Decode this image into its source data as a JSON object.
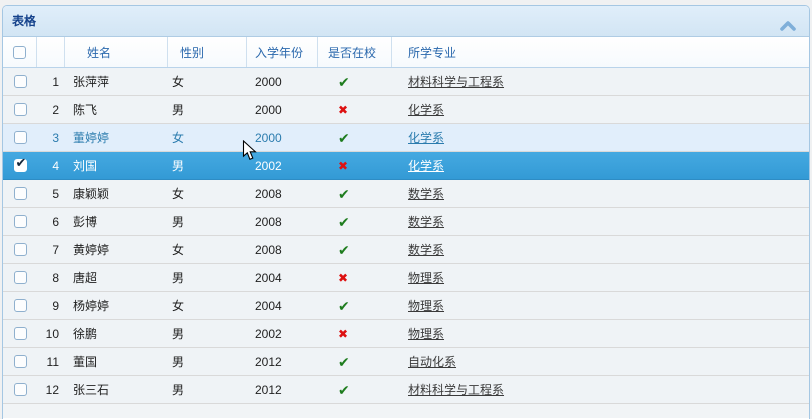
{
  "panel": {
    "title": "表格",
    "collapse_tool": "chevron-up-icon"
  },
  "table": {
    "columns": [
      {
        "key": "select",
        "label": ""
      },
      {
        "key": "rownumber",
        "label": ""
      },
      {
        "key": "name",
        "label": "姓名"
      },
      {
        "key": "gender",
        "label": "性别"
      },
      {
        "key": "year",
        "label": "入学年份"
      },
      {
        "key": "enrolled",
        "label": "是否在校"
      },
      {
        "key": "major",
        "label": "所学专业"
      }
    ],
    "select_all_checked": false,
    "rows": [
      {
        "num": 1,
        "name": "张萍萍",
        "gender": "女",
        "year": "2000",
        "enrolled": true,
        "major": "材料科学与工程系",
        "state": "normal"
      },
      {
        "num": 2,
        "name": "陈飞",
        "gender": "男",
        "year": "2000",
        "enrolled": false,
        "major": "化学系",
        "state": "normal"
      },
      {
        "num": 3,
        "name": "董婷婷",
        "gender": "女",
        "year": "2000",
        "enrolled": true,
        "major": "化学系",
        "state": "hover"
      },
      {
        "num": 4,
        "name": "刘国",
        "gender": "男",
        "year": "2002",
        "enrolled": false,
        "major": "化学系",
        "state": "selected"
      },
      {
        "num": 5,
        "name": "康颖颖",
        "gender": "女",
        "year": "2008",
        "enrolled": true,
        "major": "数学系",
        "state": "normal"
      },
      {
        "num": 6,
        "name": "彭博",
        "gender": "男",
        "year": "2008",
        "enrolled": true,
        "major": "数学系",
        "state": "normal"
      },
      {
        "num": 7,
        "name": "黄婷婷",
        "gender": "女",
        "year": "2008",
        "enrolled": true,
        "major": "数学系",
        "state": "normal"
      },
      {
        "num": 8,
        "name": "唐超",
        "gender": "男",
        "year": "2004",
        "enrolled": false,
        "major": "物理系",
        "state": "normal"
      },
      {
        "num": 9,
        "name": "杨婷婷",
        "gender": "女",
        "year": "2004",
        "enrolled": true,
        "major": "物理系",
        "state": "normal"
      },
      {
        "num": 10,
        "name": "徐鹏",
        "gender": "男",
        "year": "2002",
        "enrolled": false,
        "major": "物理系",
        "state": "normal"
      },
      {
        "num": 11,
        "name": "董国",
        "gender": "男",
        "year": "2012",
        "enrolled": true,
        "major": "自动化系",
        "state": "normal"
      },
      {
        "num": 12,
        "name": "张三石",
        "gender": "男",
        "year": "2012",
        "enrolled": true,
        "major": "材料科学与工程系",
        "state": "normal"
      }
    ]
  },
  "icons": {
    "check": "✔",
    "cross": "✖",
    "checkbox_check": "✔"
  },
  "colors": {
    "panel_border": "#a5c7e3",
    "title_bar_bg": "#d7e8f6",
    "title_text": "#15428b",
    "header_text": "#2a68ad",
    "row_bg": "#eff3f6",
    "hover_row_bg": "#e1eefb",
    "hover_text": "#2b7cae",
    "selected_row_bg": "#39a0da",
    "selected_text": "#ffffff",
    "check_green": "#1e7c1e",
    "cross_red": "#dd1111"
  }
}
